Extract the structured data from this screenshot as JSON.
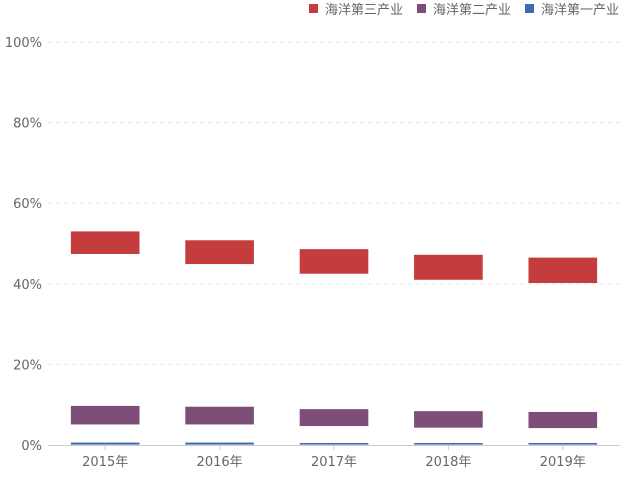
{
  "chart_data": {
    "type": "bar",
    "subtype": "floating-range",
    "categories": [
      "2015年",
      "2016年",
      "2017年",
      "2018年",
      "2019年"
    ],
    "series": [
      {
        "name": "海洋第三产业",
        "color": "#c43c3c",
        "low": [
          47.4,
          44.9,
          42.5,
          41.0,
          40.2
        ],
        "high": [
          53.0,
          50.8,
          48.6,
          47.2,
          46.5
        ]
      },
      {
        "name": "海洋第二产业",
        "color": "#7d4e78",
        "low": [
          5.1,
          5.1,
          4.7,
          4.3,
          4.2
        ],
        "high": [
          9.7,
          9.5,
          8.9,
          8.4,
          8.2
        ]
      },
      {
        "name": "海洋第一产业",
        "color": "#3d6bb3",
        "low": [
          0.1,
          0.1,
          0.1,
          0.1,
          0.1
        ],
        "high": [
          0.6,
          0.6,
          0.5,
          0.5,
          0.5
        ]
      }
    ],
    "y_ticks": [
      "0%",
      "20%",
      "40%",
      "60%",
      "80%",
      "100%"
    ],
    "ylim": [
      0,
      100
    ],
    "grid": true,
    "legend_position": "top-right"
  }
}
